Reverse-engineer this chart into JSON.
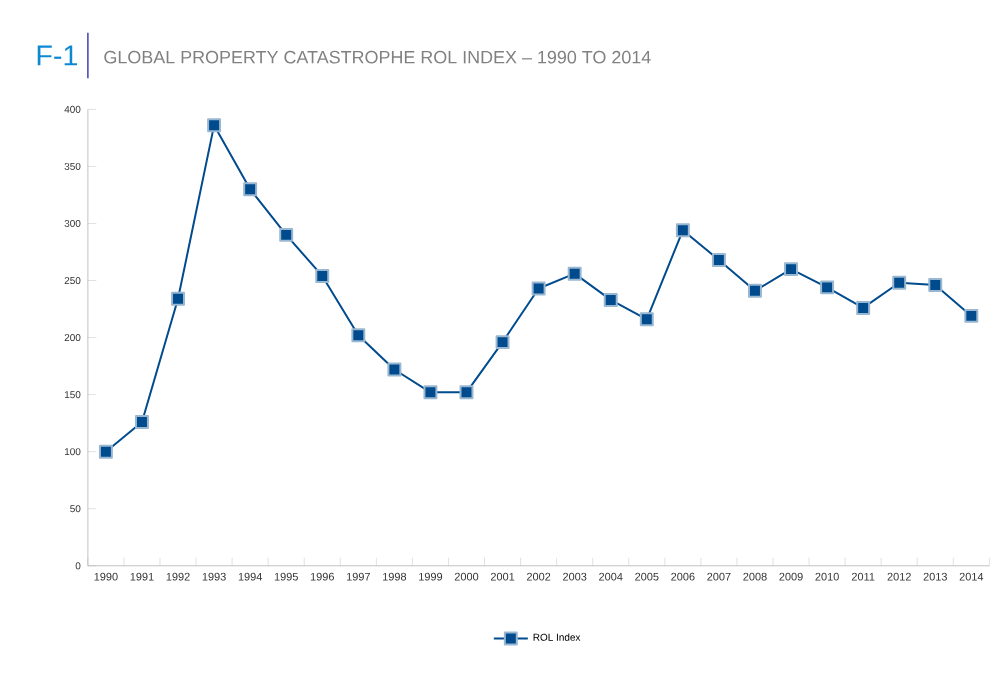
{
  "chart_data": {
    "type": "line",
    "title": "GLOBAL PROPERTY CATASTROPHE ROL INDEX – 1990 TO 2014",
    "annotations": [
      "F-1"
    ],
    "categories": [
      "1990",
      "1991",
      "1992",
      "1993",
      "1994",
      "1995",
      "1996",
      "1997",
      "1998",
      "1999",
      "2000",
      "2001",
      "2002",
      "2003",
      "2004",
      "2005",
      "2006",
      "2007",
      "2008",
      "2009",
      "2010",
      "2011",
      "2012",
      "2013",
      "2014"
    ],
    "series": [
      {
        "name": "ROL Index",
        "color": "#004b8d",
        "values": [
          100,
          126,
          234,
          386,
          330,
          290,
          254,
          202,
          172,
          152,
          152,
          196,
          243,
          256,
          233,
          216,
          294,
          268,
          241,
          260,
          244,
          226,
          248,
          246,
          219
        ]
      }
    ],
    "ylim": [
      0,
      400
    ],
    "yticks": [
      0,
      50,
      100,
      150,
      200,
      250,
      300,
      350,
      400
    ],
    "grid": false,
    "legend": "bottom",
    "marker": "square",
    "line_style": "solid"
  }
}
